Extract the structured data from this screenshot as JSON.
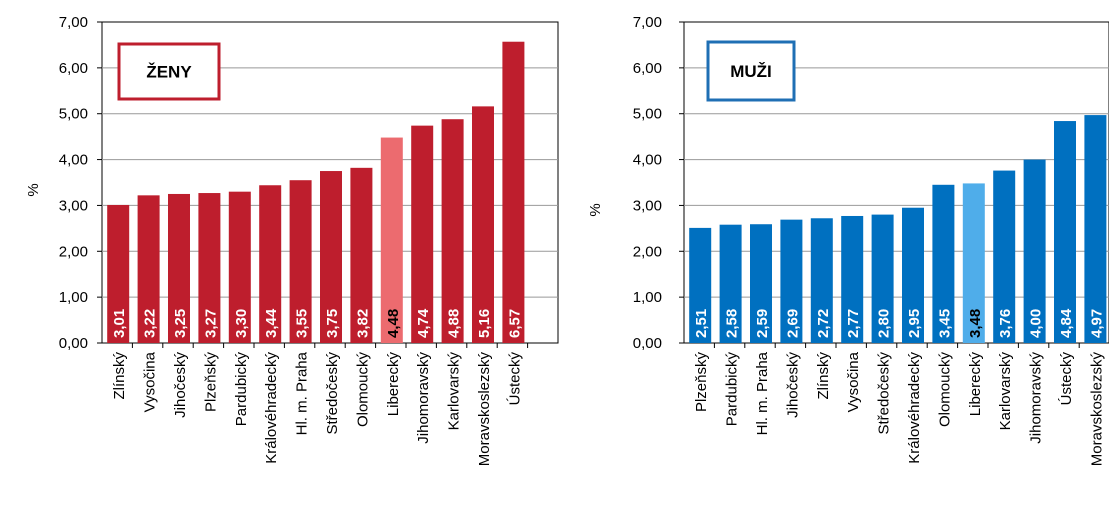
{
  "chart_data": [
    {
      "type": "bar",
      "title": "ŽENY",
      "ylabel": "%",
      "ylim": [
        0,
        7
      ],
      "yticks": [
        "0,00",
        "1,00",
        "2,00",
        "3,00",
        "4,00",
        "5,00",
        "6,00",
        "7,00"
      ],
      "grid": true,
      "categories": [
        "Zlínský",
        "Vysočina",
        "Jihočeský",
        "Plzeňský",
        "Pardubický",
        "Královéhradecký",
        "Hl. m. Praha",
        "Středočeský",
        "Olomoucký",
        "Liberecký",
        "Jihomoravský",
        "Karlovarský",
        "Moravskoslezský",
        "Ústecký"
      ],
      "values": [
        3.01,
        3.22,
        3.25,
        3.27,
        3.3,
        3.44,
        3.55,
        3.75,
        3.82,
        4.48,
        4.74,
        4.88,
        5.16,
        6.57
      ],
      "value_labels": [
        "3,01",
        "3,22",
        "3,25",
        "3,27",
        "3,30",
        "3,44",
        "3,55",
        "3,75",
        "3,82",
        "4,48",
        "4,74",
        "4,88",
        "5,16",
        "6,57"
      ],
      "highlight": "Liberecký",
      "colors": {
        "bar": "#BE1E2D",
        "highlight": "#EC6B6F",
        "frame": "#BE1E2D"
      }
    },
    {
      "type": "bar",
      "title": "MUŽI",
      "ylabel": "%",
      "ylim": [
        0,
        7
      ],
      "yticks": [
        "0,00",
        "1,00",
        "2,00",
        "3,00",
        "4,00",
        "5,00",
        "6,00",
        "7,00"
      ],
      "grid": true,
      "categories": [
        "Plzeňský",
        "Pardubický",
        "Hl. m. Praha",
        "Jihočeský",
        "Zlínský",
        "Vysočina",
        "Středočeský",
        "Královéhradecký",
        "Olomoucký",
        "Liberecký",
        "Karlovarský",
        "Jihomoravský",
        "Ústecký",
        "Moravskoslezský"
      ],
      "values": [
        2.51,
        2.58,
        2.59,
        2.69,
        2.72,
        2.77,
        2.8,
        2.95,
        3.45,
        3.48,
        3.76,
        4.0,
        4.84,
        4.97
      ],
      "value_labels": [
        "2,51",
        "2,58",
        "2,59",
        "2,69",
        "2,72",
        "2,77",
        "2,80",
        "2,95",
        "3,45",
        "3,48",
        "3,76",
        "4,00",
        "4,84",
        "4,97"
      ],
      "highlight": "Liberecký",
      "colors": {
        "bar": "#0070C0",
        "highlight": "#4FADEA",
        "frame": "#1F6FB4"
      }
    }
  ]
}
